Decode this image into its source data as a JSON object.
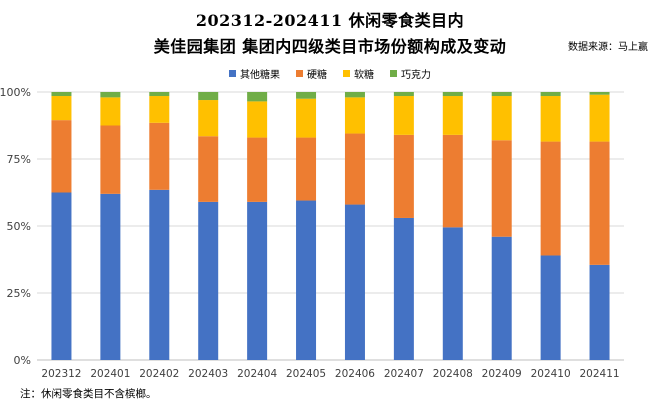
{
  "title_line1": "202312-202411 休闲零食类目内",
  "title_line2": "美佳园集团 集团内四级类目市场份额构成及变动",
  "source": "数据来源：马上赢",
  "footnote": "注：休闲零食类目不含槟榔。",
  "chart_data": {
    "type": "bar",
    "stacked": "percent",
    "title": "202312-202411 休闲零食类目内 美佳园集团 集团内四级类目市场份额构成及变动",
    "categories": [
      "202312",
      "202401",
      "202402",
      "202403",
      "202404",
      "202405",
      "202406",
      "202407",
      "202408",
      "202409",
      "202410",
      "202411"
    ],
    "series": [
      {
        "name": "其他糖果",
        "color": "#4472C4",
        "values": [
          62.5,
          62.0,
          63.5,
          59.0,
          59.0,
          59.5,
          58.0,
          53.0,
          49.5,
          46.0,
          39.0,
          35.5
        ]
      },
      {
        "name": "硬糖",
        "color": "#ED7D31",
        "values": [
          27.0,
          25.5,
          25.0,
          24.5,
          24.0,
          23.5,
          26.5,
          31.0,
          34.5,
          36.0,
          42.5,
          46.0
        ]
      },
      {
        "name": "软糖",
        "color": "#FFC000",
        "values": [
          9.0,
          10.5,
          10.0,
          13.5,
          13.5,
          14.5,
          13.5,
          14.5,
          14.5,
          16.5,
          17.0,
          17.5
        ]
      },
      {
        "name": "巧克力",
        "color": "#70AD47",
        "values": [
          1.5,
          2.0,
          1.5,
          3.0,
          3.5,
          2.5,
          2.0,
          1.5,
          1.5,
          1.5,
          1.5,
          1.0
        ]
      }
    ],
    "y_ticks": [
      "0%",
      "25%",
      "50%",
      "75%",
      "100%"
    ],
    "ylim": [
      0,
      100
    ],
    "legend": "top-center",
    "grid": true
  }
}
